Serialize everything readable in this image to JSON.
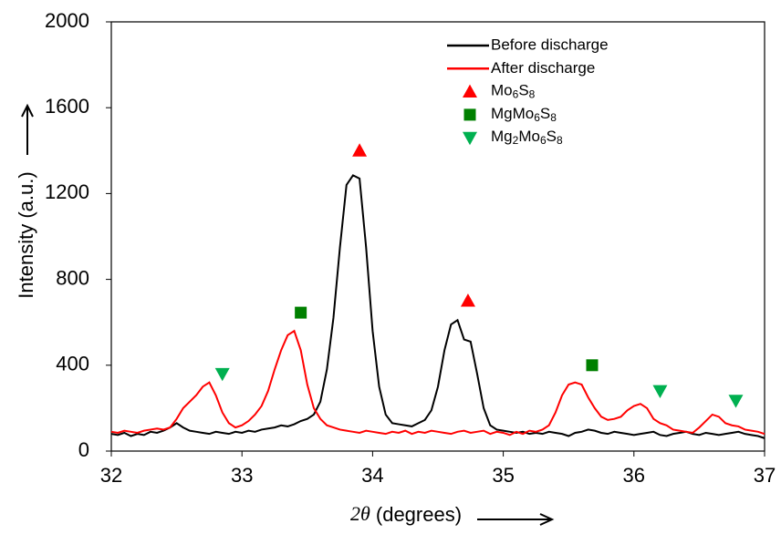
{
  "chart_data": {
    "type": "line",
    "x_label": "2θ (degrees)",
    "y_label": "Intensity (a.u.)",
    "xlim": [
      32,
      37
    ],
    "xticks": [
      32,
      33,
      34,
      35,
      36,
      37
    ],
    "ylim": [
      0,
      2000
    ],
    "yticks": [
      0,
      400,
      800,
      1200,
      1600,
      2000
    ],
    "x": [
      32.0,
      32.05,
      32.1,
      32.15,
      32.2,
      32.25,
      32.3,
      32.35,
      32.4,
      32.45,
      32.5,
      32.55,
      32.6,
      32.65,
      32.7,
      32.75,
      32.8,
      32.85,
      32.9,
      32.95,
      33.0,
      33.05,
      33.1,
      33.15,
      33.2,
      33.25,
      33.3,
      33.35,
      33.4,
      33.45,
      33.5,
      33.55,
      33.6,
      33.65,
      33.7,
      33.75,
      33.8,
      33.85,
      33.9,
      33.95,
      34.0,
      34.05,
      34.1,
      34.15,
      34.2,
      34.25,
      34.3,
      34.35,
      34.4,
      34.45,
      34.5,
      34.55,
      34.6,
      34.65,
      34.7,
      34.75,
      34.8,
      34.85,
      34.9,
      34.95,
      35.0,
      35.05,
      35.1,
      35.15,
      35.2,
      35.25,
      35.3,
      35.35,
      35.4,
      35.45,
      35.5,
      35.55,
      35.6,
      35.65,
      35.7,
      35.75,
      35.8,
      35.85,
      35.9,
      35.95,
      36.0,
      36.05,
      36.1,
      36.15,
      36.2,
      36.25,
      36.3,
      36.35,
      36.4,
      36.45,
      36.5,
      36.55,
      36.6,
      36.65,
      36.7,
      36.75,
      36.8,
      36.85,
      36.9,
      36.95,
      37.0
    ],
    "series": [
      {
        "name": "Before discharge",
        "color": "#000000",
        "values": [
          80,
          75,
          85,
          70,
          80,
          75,
          90,
          85,
          95,
          110,
          130,
          110,
          95,
          90,
          85,
          80,
          90,
          85,
          80,
          90,
          85,
          95,
          90,
          100,
          105,
          110,
          120,
          115,
          125,
          140,
          150,
          170,
          230,
          380,
          620,
          950,
          1240,
          1285,
          1270,
          950,
          560,
          300,
          170,
          130,
          125,
          120,
          115,
          130,
          145,
          190,
          300,
          470,
          590,
          610,
          520,
          510,
          360,
          200,
          120,
          100,
          95,
          90,
          85,
          90,
          80,
          85,
          80,
          90,
          85,
          80,
          70,
          85,
          90,
          100,
          95,
          85,
          80,
          90,
          85,
          80,
          75,
          80,
          85,
          90,
          75,
          70,
          80,
          85,
          90,
          80,
          75,
          85,
          80,
          75,
          80,
          85,
          90,
          80,
          75,
          70,
          60
        ]
      },
      {
        "name": "After discharge",
        "color": "#ff0000",
        "values": [
          90,
          85,
          95,
          90,
          85,
          95,
          100,
          105,
          100,
          110,
          150,
          200,
          230,
          260,
          300,
          320,
          260,
          180,
          130,
          110,
          120,
          140,
          170,
          210,
          280,
          380,
          470,
          540,
          560,
          470,
          310,
          200,
          150,
          120,
          110,
          100,
          95,
          90,
          85,
          95,
          90,
          85,
          80,
          90,
          85,
          95,
          80,
          90,
          85,
          95,
          90,
          85,
          80,
          90,
          95,
          85,
          90,
          95,
          80,
          90,
          85,
          75,
          90,
          80,
          95,
          90,
          100,
          120,
          180,
          260,
          310,
          320,
          310,
          250,
          200,
          160,
          145,
          150,
          160,
          190,
          210,
          220,
          200,
          150,
          130,
          120,
          100,
          95,
          90,
          85,
          110,
          140,
          170,
          160,
          130,
          120,
          115,
          100,
          95,
          90,
          80
        ]
      },
      {
        "name": "Mo6S8",
        "color": "#ff0000",
        "marker": "triangle-up",
        "x": [
          33.9,
          34.73
        ],
        "values": [
          1400,
          700
        ]
      },
      {
        "name": "MgMo6S8",
        "color": "#008000",
        "marker": "square",
        "x": [
          33.45,
          35.68
        ],
        "values": [
          645,
          400
        ]
      },
      {
        "name": "Mg2Mo6S8",
        "color": "#00b050",
        "marker": "triangle-down",
        "x": [
          32.85,
          36.2,
          36.78
        ],
        "values": [
          360,
          280,
          235
        ]
      }
    ]
  }
}
